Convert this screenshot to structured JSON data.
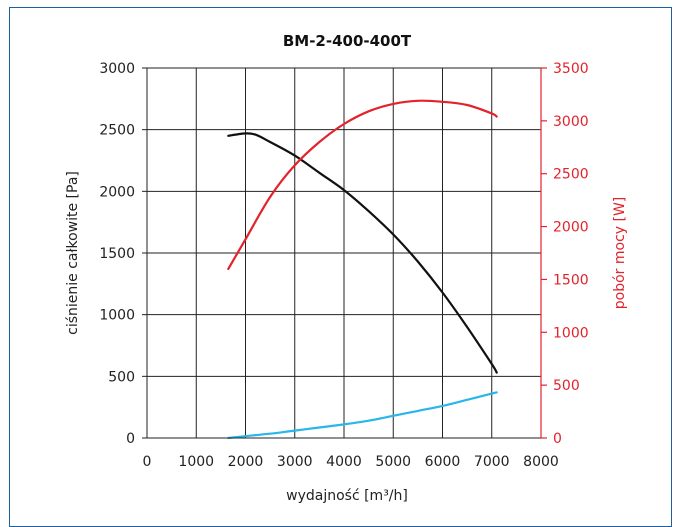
{
  "chart_data": {
    "type": "line",
    "title": "BM-2-400-400T",
    "xlabel": "wydajność [m³/h]",
    "ylabel_left": "ciśnienie całkowite [Pa]",
    "ylabel_right": "pobór mocy [W]",
    "xlim": [
      0,
      8000
    ],
    "ylim_left": [
      0,
      3000
    ],
    "ylim_right": [
      0,
      3500
    ],
    "grid": true,
    "x_ticks": [
      "0",
      "1000",
      "2000",
      "3000",
      "4000",
      "5000",
      "6000",
      "7000",
      "8000"
    ],
    "y_left_ticks": [
      "0",
      "500",
      "1000",
      "1500",
      "2000",
      "2500",
      "3000"
    ],
    "y_right_ticks": [
      "0",
      "500",
      "1000",
      "1500",
      "2000",
      "2500",
      "3000",
      "3500"
    ],
    "colors": {
      "pressure": "#111111",
      "power": "#e3232c",
      "efficiency": "#29b6e8",
      "right_axis": "#e3232c",
      "frame": "#1f5f9c"
    },
    "series": [
      {
        "key": "pressure",
        "axis": "left",
        "x": [
          1650,
          1800,
          2000,
          2200,
          2500,
          3000,
          3500,
          4000,
          4500,
          5000,
          5500,
          6000,
          6500,
          7000,
          7100
        ],
        "y": [
          2450,
          2460,
          2470,
          2460,
          2400,
          2290,
          2150,
          2010,
          1840,
          1650,
          1430,
          1180,
          900,
          600,
          530
        ]
      },
      {
        "key": "power",
        "axis": "right",
        "x": [
          1650,
          2000,
          2500,
          3000,
          3500,
          4000,
          4500,
          5000,
          5500,
          6000,
          6500,
          7000,
          7100
        ],
        "y": [
          1600,
          1880,
          2280,
          2580,
          2800,
          2970,
          3090,
          3160,
          3190,
          3180,
          3150,
          3070,
          3040
        ]
      },
      {
        "key": "efficiency",
        "axis": "left",
        "x": [
          1650,
          2000,
          2500,
          3000,
          3500,
          4000,
          4500,
          5000,
          5500,
          6000,
          6500,
          7000,
          7100
        ],
        "y": [
          0,
          15,
          35,
          60,
          85,
          110,
          140,
          180,
          220,
          260,
          310,
          360,
          370
        ]
      }
    ]
  }
}
